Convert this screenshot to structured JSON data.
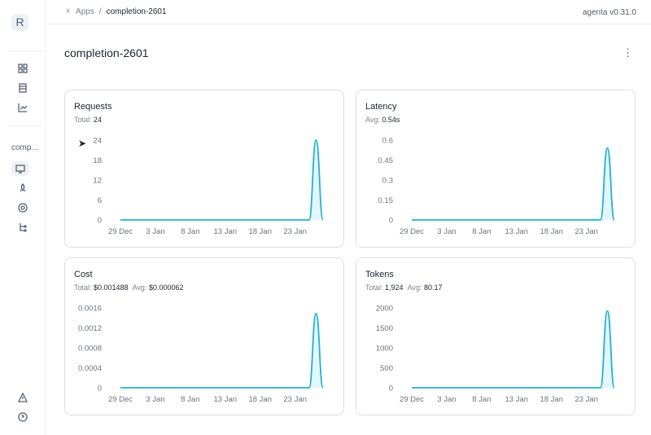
{
  "sidebar": {
    "logo": "R",
    "app_label": "comp...",
    "icons": [
      "grid-icon",
      "table-icon",
      "chart-icon",
      "monitor-icon",
      "rocket-icon",
      "target-icon",
      "tree-icon",
      "alert-icon",
      "help-icon"
    ]
  },
  "breadcrumb": {
    "root": "Apps",
    "separator": "/",
    "current": "completion-2601"
  },
  "version": "agenta v0.31.0",
  "page_title": "completion-2601",
  "accent": "#1fb3d3",
  "chart_data": [
    {
      "type": "area",
      "title": "Requests",
      "summary": [
        {
          "label": "Total:",
          "value": "24"
        }
      ],
      "x_ticks": [
        "29 Dec",
        "3 Jan",
        "8 Jan",
        "13 Jan",
        "18 Jan",
        "23 Jan"
      ],
      "y_ticks": [
        "0",
        "6",
        "12",
        "18",
        "24"
      ],
      "ylim": [
        0,
        24
      ],
      "x_range": [
        "2024-12-29",
        "2025-01-27"
      ],
      "points": [
        [
          "2024-12-29",
          0
        ],
        [
          "2025-01-25",
          0
        ],
        [
          "2025-01-26",
          24
        ],
        [
          "2025-01-27",
          0
        ]
      ]
    },
    {
      "type": "area",
      "title": "Latency",
      "summary": [
        {
          "label": "Avg:",
          "value": "0.54s"
        }
      ],
      "x_ticks": [
        "29 Dec",
        "3 Jan",
        "8 Jan",
        "13 Jan",
        "18 Jan",
        "23 Jan"
      ],
      "y_ticks": [
        "0",
        "0.15",
        "0.3",
        "0.45",
        "0.6"
      ],
      "ylim": [
        0,
        0.6
      ],
      "x_range": [
        "2024-12-29",
        "2025-01-27"
      ],
      "points": [
        [
          "2024-12-29",
          0
        ],
        [
          "2025-01-25",
          0
        ],
        [
          "2025-01-26",
          0.54
        ],
        [
          "2025-01-27",
          0
        ]
      ]
    },
    {
      "type": "area",
      "title": "Cost",
      "summary": [
        {
          "label": "Total:",
          "value": "$0.001488"
        },
        {
          "label": "Avg:",
          "value": "$0.000062"
        }
      ],
      "x_ticks": [
        "29 Dec",
        "3 Jan",
        "8 Jan",
        "13 Jan",
        "18 Jan",
        "23 Jan"
      ],
      "y_ticks": [
        "0",
        "0.0004",
        "0.0008",
        "0.0012",
        "0.0016"
      ],
      "ylim": [
        0,
        0.0016
      ],
      "x_range": [
        "2024-12-29",
        "2025-01-27"
      ],
      "points": [
        [
          "2024-12-29",
          0
        ],
        [
          "2025-01-25",
          0
        ],
        [
          "2025-01-26",
          0.001488
        ],
        [
          "2025-01-27",
          0
        ]
      ]
    },
    {
      "type": "area",
      "title": "Tokens",
      "summary": [
        {
          "label": "Total:",
          "value": "1,924"
        },
        {
          "label": "Avg:",
          "value": "80.17"
        }
      ],
      "x_ticks": [
        "29 Dec",
        "3 Jan",
        "8 Jan",
        "13 Jan",
        "18 Jan",
        "23 Jan"
      ],
      "y_ticks": [
        "0",
        "500",
        "1000",
        "1500",
        "2000"
      ],
      "ylim": [
        0,
        2000
      ],
      "x_range": [
        "2024-12-29",
        "2025-01-27"
      ],
      "points": [
        [
          "2024-12-29",
          0
        ],
        [
          "2025-01-25",
          0
        ],
        [
          "2025-01-26",
          1924
        ],
        [
          "2025-01-27",
          0
        ]
      ]
    }
  ]
}
